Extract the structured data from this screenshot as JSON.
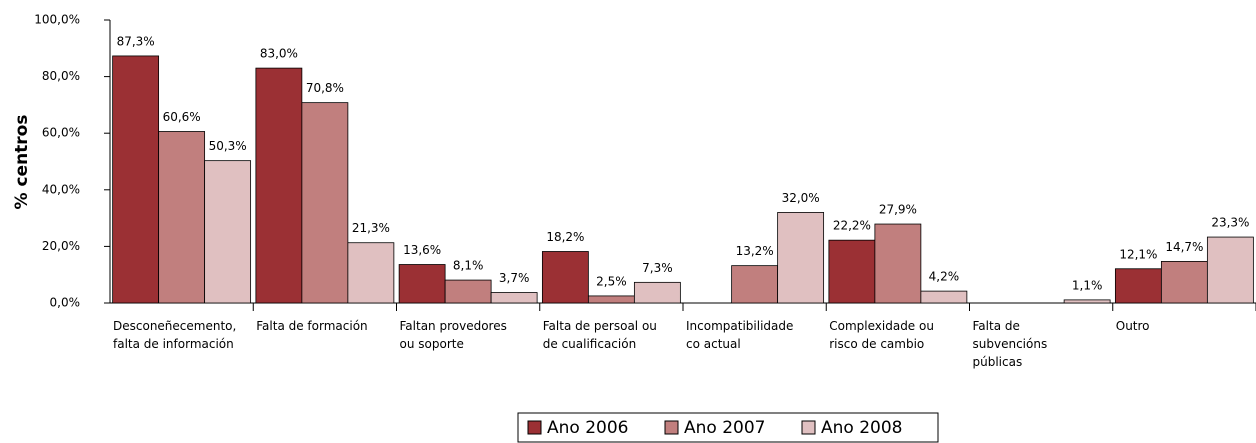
{
  "chart_data": {
    "type": "bar",
    "ylabel": "% centros",
    "categories": [
      "Desconeñecemento,\nfalta de información",
      "Falta de formación",
      "Faltan provedores\nou soporte",
      "Falta de persoal ou\nde cualificación",
      "Incompatibilidade\nco actual",
      "Complexidade ou\nrisco de cambio",
      "Falta de\nsubvencións\npúblicas",
      "Outro"
    ],
    "series": [
      {
        "name": "Ano 2006",
        "color": "#9b3034",
        "values": [
          87.3,
          83.0,
          13.6,
          18.2,
          null,
          22.2,
          null,
          12.1
        ],
        "value_labels": [
          "87,3%",
          "83,0%",
          "13,6%",
          "18,2%",
          null,
          "22,2%",
          null,
          "12,1%"
        ]
      },
      {
        "name": "Ano 2007",
        "color": "#c17f7e",
        "values": [
          60.6,
          70.8,
          8.1,
          2.5,
          13.2,
          27.9,
          null,
          14.7
        ],
        "value_labels": [
          "60,6%",
          "70,8%",
          "8,1%",
          "2,5%",
          "13,2%",
          "27,9%",
          null,
          "14,7%"
        ]
      },
      {
        "name": "Ano 2008",
        "color": "#e0c0c1",
        "values": [
          50.3,
          21.3,
          3.7,
          7.3,
          32.0,
          4.2,
          1.1,
          23.3
        ],
        "value_labels": [
          "50,3%",
          "21,3%",
          "3,7%",
          "7,3%",
          "32,0%",
          "4,2%",
          "1,1%",
          "23,3%"
        ]
      }
    ],
    "ylim": [
      0,
      100
    ],
    "yticks": [
      {
        "value": 0,
        "label": "0,0%"
      },
      {
        "value": 20,
        "label": "20,0%"
      },
      {
        "value": 40,
        "label": "40,0%"
      },
      {
        "value": 60,
        "label": "60,0%"
      },
      {
        "value": 80,
        "label": "80,0%"
      },
      {
        "value": 100,
        "label": "100,0%"
      }
    ],
    "legend": "bottom"
  }
}
